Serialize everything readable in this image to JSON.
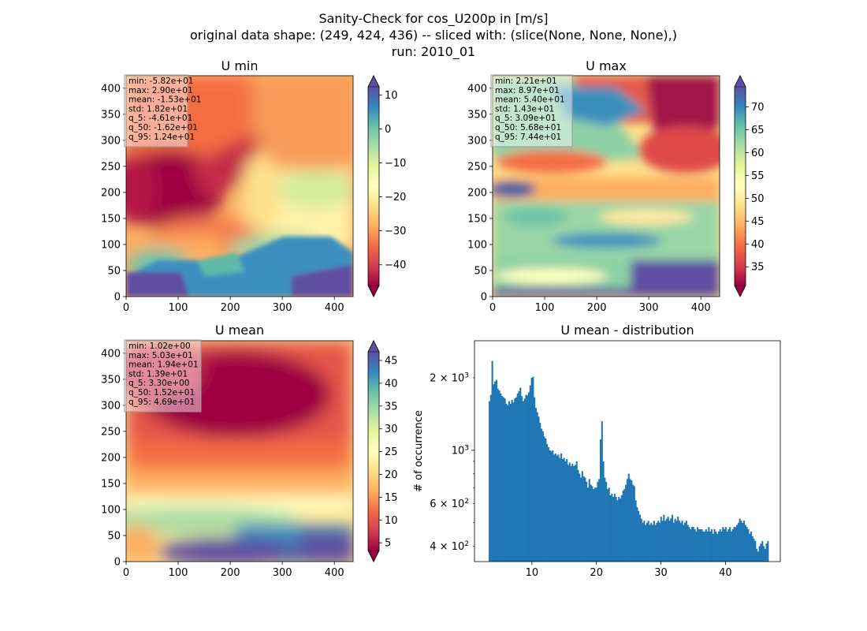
{
  "suptitle": {
    "line1": "Sanity-Check for cos_U200p in [m/s]",
    "line2": "original data shape: (249, 424, 436) -- sliced with: (slice(None, None, None),)",
    "line3": "run: 2010_01"
  },
  "chart_data": [
    {
      "type": "heatmap",
      "title": "U min",
      "xticks": [
        0,
        100,
        200,
        300,
        400
      ],
      "yticks": [
        0,
        50,
        100,
        150,
        200,
        250,
        300,
        350,
        400
      ],
      "xlim": [
        0,
        436
      ],
      "ylim": [
        0,
        424
      ],
      "colormap": "Spectral",
      "colorbar": {
        "ticks": [
          -40,
          -30,
          -20,
          -10,
          0,
          10
        ],
        "tick_labels": [
          "−40",
          "−30",
          "−20",
          "−10",
          "0",
          "10"
        ],
        "range": [
          -46.1,
          12.4
        ],
        "extend": "both"
      },
      "stats": [
        "min: -5.82e+01",
        "max: 2.90e+01",
        "mean: -1.53e+01",
        "std: 1.82e+01",
        "q_5: -4.61e+01",
        "q_50: -1.62e+01",
        "q_95: 1.24e+01"
      ]
    },
    {
      "type": "heatmap",
      "title": "U max",
      "xticks": [
        0,
        100,
        200,
        300,
        400
      ],
      "yticks": [
        0,
        50,
        100,
        150,
        200,
        250,
        300,
        350,
        400
      ],
      "xlim": [
        0,
        436
      ],
      "ylim": [
        0,
        424
      ],
      "colormap": "Spectral",
      "colorbar": {
        "ticks": [
          35,
          40,
          45,
          50,
          55,
          60,
          65,
          70
        ],
        "tick_labels": [
          "35",
          "40",
          "45",
          "50",
          "55",
          "60",
          "65",
          "70"
        ],
        "range": [
          30.9,
          74.4
        ],
        "extend": "both"
      },
      "stats": [
        "min: 2.21e+01",
        "max: 8.97e+01",
        "mean: 5.40e+01",
        "std: 1.43e+01",
        "q_5: 3.09e+01",
        "q_50: 5.68e+01",
        "q_95: 7.44e+01"
      ]
    },
    {
      "type": "heatmap",
      "title": "U mean",
      "xticks": [
        0,
        100,
        200,
        300,
        400
      ],
      "yticks": [
        0,
        50,
        100,
        150,
        200,
        250,
        300,
        350,
        400
      ],
      "xlim": [
        0,
        436
      ],
      "ylim": [
        0,
        424
      ],
      "colormap": "Spectral",
      "colorbar": {
        "ticks": [
          5,
          10,
          15,
          20,
          25,
          30,
          35,
          40,
          45
        ],
        "tick_labels": [
          "5",
          "10",
          "15",
          "20",
          "25",
          "30",
          "35",
          "40",
          "45"
        ],
        "range": [
          3.3,
          46.9
        ],
        "extend": "both"
      },
      "stats": [
        "min: 1.02e+00",
        "max: 5.03e+01",
        "mean: 1.94e+01",
        "std: 1.39e+01",
        "q_5: 3.30e+00",
        "q_50: 1.52e+01",
        "q_95: 4.69e+01"
      ]
    },
    {
      "type": "bar",
      "title": "U mean - distribution",
      "ylabel": "# of occurrence",
      "yscale": "log",
      "xlim": [
        1.1,
        48.5
      ],
      "ylim": [
        345,
        2850
      ],
      "xticks": [
        10,
        20,
        30,
        40
      ],
      "ytick_labels": [
        {
          "value": 400,
          "base": "4 × 10",
          "exp": "2"
        },
        {
          "value": 600,
          "base": "6 × 10",
          "exp": "2"
        },
        {
          "value": 1000,
          "base": "10",
          "exp": "3"
        },
        {
          "value": 2000,
          "base": "2 × 10",
          "exp": "3"
        }
      ],
      "bin_start": 3.3,
      "bin_width": 0.218,
      "color": "#1f77b4",
      "values": [
        1600,
        1700,
        2350,
        1880,
        1930,
        1960,
        1800,
        1770,
        1720,
        1680,
        1660,
        1640,
        1560,
        1540,
        1600,
        1560,
        1620,
        1580,
        1640,
        1660,
        1720,
        1760,
        1820,
        1680,
        1600,
        1640,
        1700,
        1690,
        1740,
        1860,
        2000,
        2020,
        1660,
        1500,
        1440,
        1380,
        1300,
        1230,
        1200,
        1140,
        1120,
        1060,
        1030,
        1000,
        990,
        1000,
        960,
        970,
        950,
        960,
        930,
        970,
        920,
        930,
        900,
        920,
        870,
        890,
        860,
        880,
        860,
        870,
        900,
        830,
        800,
        770,
        820,
        780,
        770,
        740,
        700,
        760,
        720,
        710,
        690,
        700,
        700,
        740,
        760,
        1110,
        1320,
        900,
        770,
        740,
        690,
        700,
        650,
        660,
        640,
        660,
        640,
        620,
        640,
        630,
        650,
        680,
        690,
        720,
        760,
        800,
        760,
        750,
        720,
        710,
        620,
        580,
        560,
        540,
        520,
        500,
        510,
        490,
        500,
        510,
        490,
        500,
        490,
        510,
        490,
        500,
        510,
        500,
        530,
        510,
        540,
        510,
        520,
        530,
        510,
        520,
        540,
        500,
        520,
        510,
        530,
        510,
        500,
        510,
        490,
        500,
        510,
        490,
        480,
        470,
        480,
        480,
        470,
        460,
        480,
        470,
        470,
        470,
        460,
        460,
        470,
        460,
        480,
        460,
        470,
        450,
        470,
        460,
        450,
        460,
        470,
        460,
        480,
        470,
        480,
        460,
        470,
        480,
        460,
        470,
        480,
        480,
        490,
        500,
        520,
        510,
        500,
        510,
        490,
        480,
        470,
        450,
        460,
        440,
        430,
        420,
        390,
        380,
        400,
        410,
        420,
        400,
        390,
        410,
        420
      ]
    }
  ]
}
